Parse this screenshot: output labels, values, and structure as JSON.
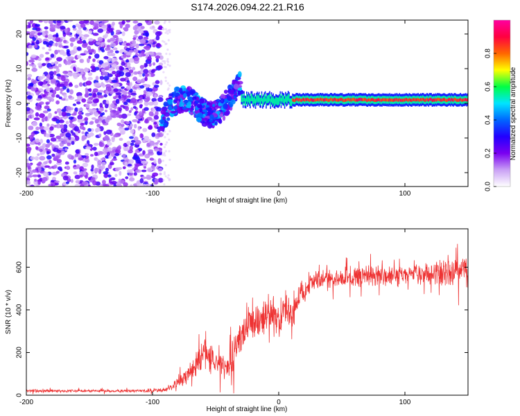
{
  "title": "S174.2026.094.22.21.R16",
  "chart_data": [
    {
      "type": "heatmap",
      "xlabel": "Height of straight line (km)",
      "ylabel": "Frequency (Hz)",
      "xlim": [
        -200,
        150
      ],
      "ylim": [
        -24,
        24
      ],
      "xticks": [
        -200,
        -100,
        0,
        100
      ],
      "yticks": [
        20,
        10,
        0,
        -10,
        -20
      ],
      "x_tick_labels": [
        "-200",
        "-100",
        "0",
        "100"
      ],
      "y_tick_labels": [
        "20",
        "10",
        "0",
        "-10",
        "-20"
      ],
      "colorbar": {
        "label": "Normalized spectral amplitude",
        "range": [
          0,
          1
        ],
        "ticks": [
          0.0,
          0.2,
          0.4,
          0.6,
          0.8
        ],
        "tick_labels": [
          "0.0",
          "0.2",
          "0.4",
          "0.6",
          "0.8"
        ],
        "colors": [
          "#ffffff",
          "#c9a0f5",
          "#7a00f0",
          "#2200ff",
          "#0066ff",
          "#00e5ff",
          "#00ff44",
          "#ffff00",
          "#ff6600",
          "#ff0040",
          "#ff00a0"
        ]
      },
      "features": [
        {
          "region": "noise",
          "x_range": [
            -200,
            -93
          ],
          "freq_range": [
            -24,
            24
          ],
          "amplitude": 0.12
        },
        {
          "region": "onset",
          "x_range": [
            -93,
            -30
          ],
          "freq_range": [
            -8,
            6
          ],
          "amplitude": 0.3
        },
        {
          "region": "signal_line",
          "x_range": [
            -30,
            150
          ],
          "freq": 1,
          "amplitude": 0.85
        }
      ]
    },
    {
      "type": "line",
      "xlabel": "Height of straight line (km)",
      "ylabel": "SNR (10 * v/v)",
      "xlim": [
        -200,
        150
      ],
      "ylim": [
        0,
        780
      ],
      "xticks": [
        -200,
        -100,
        0,
        100
      ],
      "yticks": [
        0,
        200,
        400,
        600
      ],
      "x_tick_labels": [
        "-200",
        "-100",
        "0",
        "100"
      ],
      "y_tick_labels": [
        "0",
        "200",
        "400",
        "600"
      ],
      "color": "#ee3333",
      "series": [
        {
          "name": "SNR",
          "x": [
            -200,
            -150,
            -100,
            -90,
            -80,
            -70,
            -60,
            -50,
            -40,
            -30,
            -20,
            -15,
            -10,
            -5,
            0,
            5,
            10,
            15,
            20,
            25,
            30,
            40,
            60,
            80,
            100,
            120,
            140,
            150
          ],
          "values": [
            20,
            20,
            20,
            25,
            55,
            110,
            190,
            160,
            140,
            280,
            340,
            330,
            380,
            410,
            330,
            430,
            360,
            450,
            490,
            520,
            540,
            545,
            555,
            560,
            565,
            570,
            585,
            590
          ],
          "noise_amplitude": [
            8,
            8,
            8,
            12,
            30,
            50,
            90,
            70,
            90,
            90,
            100,
            100,
            100,
            100,
            80,
            90,
            80,
            70,
            60,
            50,
            50,
            50,
            55,
            55,
            55,
            60,
            80,
            90
          ]
        }
      ]
    }
  ]
}
